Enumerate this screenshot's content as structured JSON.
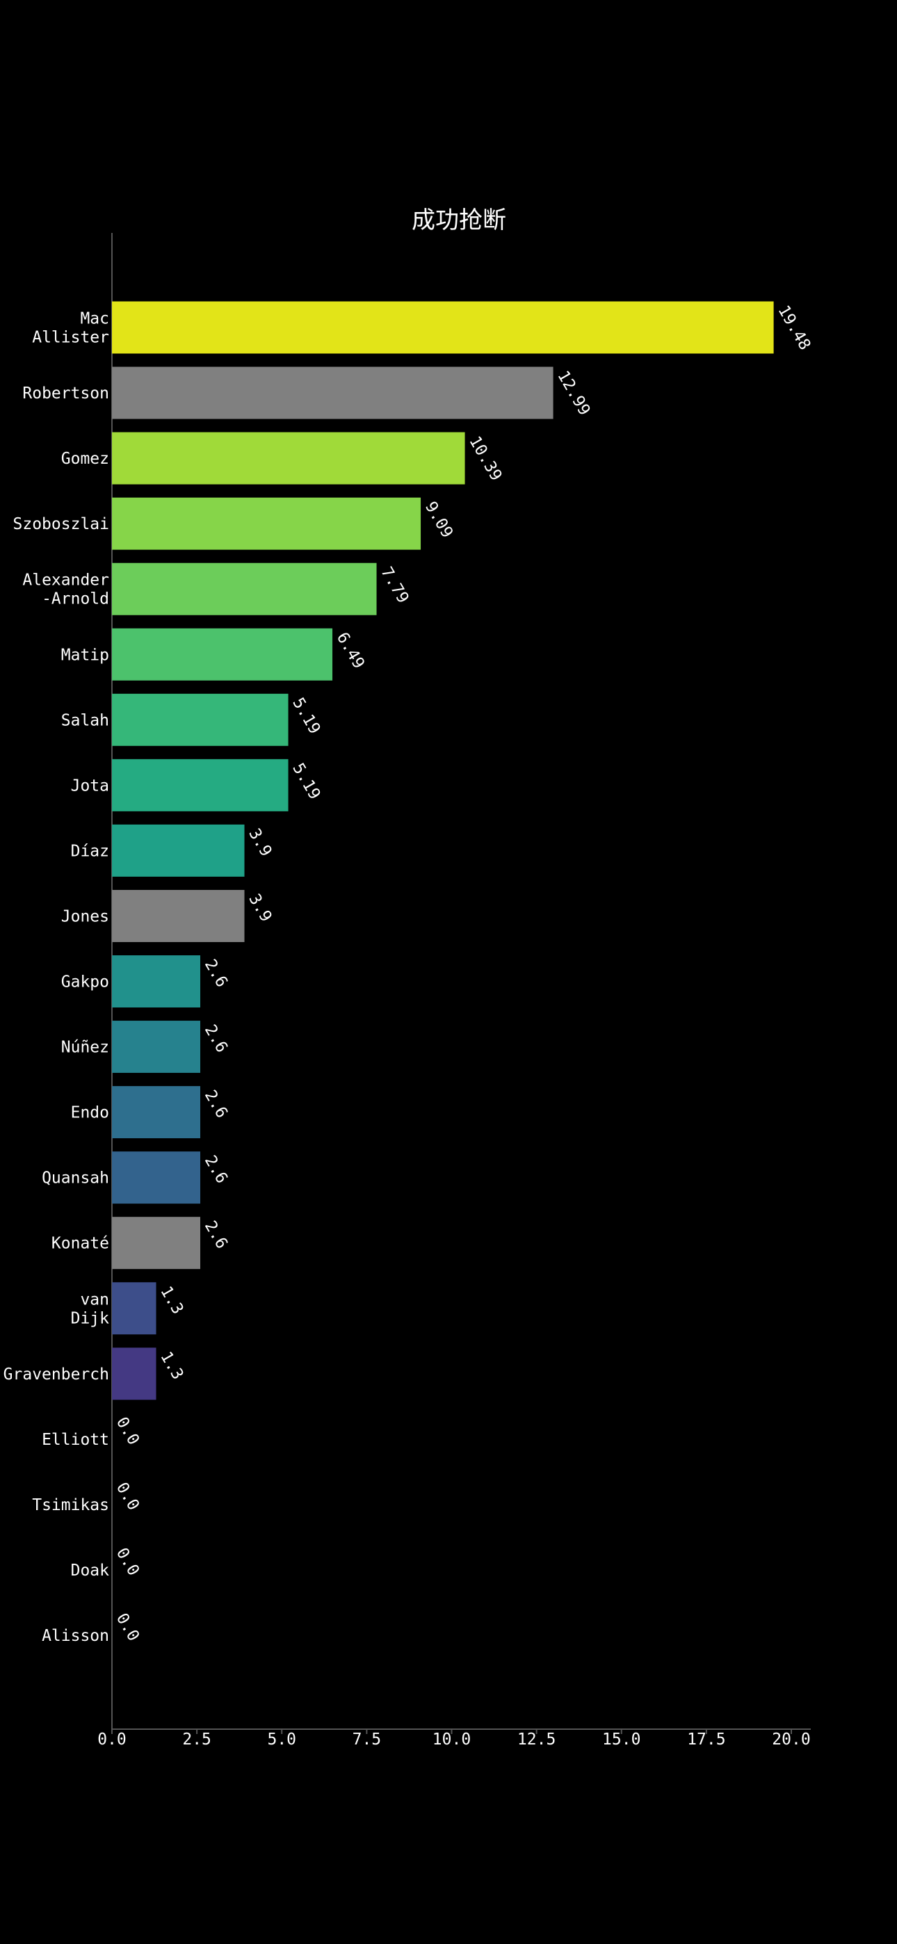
{
  "chart_data": {
    "type": "bar",
    "orientation": "horizontal",
    "title": "成功抢断",
    "xlabel": "",
    "ylabel": "",
    "xlim": [
      0,
      20
    ],
    "xticks": [
      "0.0",
      "2.5",
      "5.0",
      "7.5",
      "10.0",
      "12.5",
      "15.0",
      "17.5",
      "20.0"
    ],
    "grid": false,
    "legend": "none",
    "categories": [
      "Mac Allister",
      "Robertson",
      "Gomez",
      "Szoboszlai",
      "Alexander -Arnold",
      "Matip",
      "Salah",
      "Jota",
      "Díaz",
      "Jones",
      "Gakpo",
      "Núñez",
      "Endo",
      "Quansah",
      "Konaté",
      "van Dijk",
      "Gravenberch",
      "Elliott",
      "Tsimikas",
      "Doak",
      "Alisson"
    ],
    "category_lines": [
      [
        "Mac",
        "Allister"
      ],
      [
        "Robertson"
      ],
      [
        "Gomez"
      ],
      [
        "Szoboszlai"
      ],
      [
        "Alexander",
        "-Arnold"
      ],
      [
        "Matip"
      ],
      [
        "Salah"
      ],
      [
        "Jota"
      ],
      [
        "Díaz"
      ],
      [
        "Jones"
      ],
      [
        "Gakpo"
      ],
      [
        "Núñez"
      ],
      [
        "Endo"
      ],
      [
        "Quansah"
      ],
      [
        "Konaté"
      ],
      [
        "van",
        "Dijk"
      ],
      [
        "Gravenberch"
      ],
      [
        "Elliott"
      ],
      [
        "Tsimikas"
      ],
      [
        "Doak"
      ],
      [
        "Alisson"
      ]
    ],
    "values": [
      19.48,
      12.99,
      10.39,
      9.09,
      7.79,
      6.49,
      5.19,
      5.19,
      3.9,
      3.9,
      2.6,
      2.6,
      2.6,
      2.6,
      2.6,
      1.3,
      1.3,
      0.0,
      0.0,
      0.0,
      0.0
    ],
    "value_labels": [
      "19.48",
      "12.99",
      "10.39",
      "9.09",
      "7.79",
      "6.49",
      "5.19",
      "5.19",
      "3.9",
      "3.9",
      "2.6",
      "2.6",
      "2.6",
      "2.6",
      "2.6",
      "1.3",
      "1.3",
      "0.0",
      "0.0",
      "0.0",
      "0.0"
    ],
    "colors": [
      "#e2e418",
      "#808080",
      "#a0da39",
      "#86d549",
      "#6ccd5a",
      "#4cc26c",
      "#35b779",
      "#25ab82",
      "#1fa188",
      "#808080",
      "#21918c",
      "#26828e",
      "#2e6f8e",
      "#33638d",
      "#808080",
      "#3d4e8a",
      "#443983",
      "#46327e",
      "#482878",
      "#481a6c",
      "#440154"
    ],
    "text_color": "#ffffff",
    "background": "#000000",
    "axis_color": "#555555"
  }
}
